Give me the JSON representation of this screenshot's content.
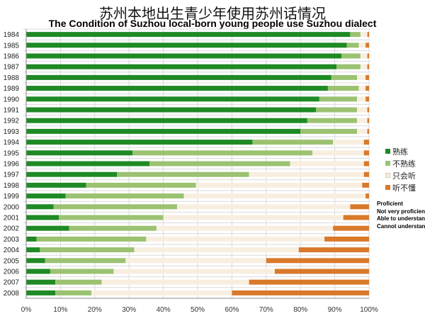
{
  "title_cn": "苏州本地出生青少年使用苏州话情况",
  "title_en": "The Condition of Suzhou local-born young people use Suzhou dialect",
  "legend_cn": [
    "熟练",
    "不熟练",
    "只会听",
    "听不懂"
  ],
  "legend_en": [
    "Proficient",
    "Not very proficient",
    "Able to understand",
    "Cannot understand"
  ],
  "colors": {
    "proficient": "#1f8a25",
    "not_very_proficient": "#9bc271",
    "able_to_understand": "#f8eee0",
    "cannot_understand": "#d9792a",
    "grid": "#d9d9d9",
    "axis": "#888888"
  },
  "chart_data": {
    "type": "bar",
    "orientation": "horizontal",
    "stacked": true,
    "title": "苏州本地出生青少年使用苏州话情况",
    "subtitle": "The Condition of Suzhou local-born young people use Suzhou dialect",
    "xlabel": "",
    "ylabel": "",
    "xlim": [
      0,
      100
    ],
    "xticks": [
      "0%",
      "10%",
      "20%",
      "30%",
      "40%",
      "50%",
      "60%",
      "70%",
      "80%",
      "90%",
      "100%"
    ],
    "grid": true,
    "legend_position": "right",
    "categories": [
      "1984",
      "1985",
      "1986",
      "1987",
      "1988",
      "1989",
      "1990",
      "1991",
      "1992",
      "1993",
      "1994",
      "1995",
      "1996",
      "1997",
      "1998",
      "1999",
      "2000",
      "2001",
      "2002",
      "2003",
      "2004",
      "2005",
      "2006",
      "2007",
      "2008"
    ],
    "series": [
      {
        "name": "熟练",
        "values": [
          94.5,
          93.5,
          92,
          90.5,
          89,
          88,
          85.5,
          84.5,
          82,
          80,
          66,
          31,
          36,
          26.5,
          17.5,
          11.5,
          8,
          9.5,
          12.5,
          3,
          4,
          5.5,
          7,
          8.5,
          8.5
        ]
      },
      {
        "name": "不熟练",
        "values": [
          3,
          3.5,
          5.5,
          7,
          7.5,
          9,
          11,
          12,
          14.5,
          16.5,
          23.5,
          52.5,
          41,
          38.5,
          32,
          34.5,
          36,
          30.5,
          25.5,
          32,
          27.5,
          23.5,
          18.5,
          13.5,
          10.5
        ]
      },
      {
        "name": "只会听",
        "values": [
          2,
          2,
          2,
          2,
          2.5,
          2,
          2.5,
          3,
          3,
          3,
          9,
          15,
          21.5,
          33.5,
          48.5,
          53,
          50.5,
          52.5,
          51.5,
          52,
          48,
          41,
          47,
          43,
          41
        ]
      },
      {
        "name": "听不懂",
        "values": [
          0.5,
          1,
          0.5,
          0.5,
          1,
          1,
          1,
          0.5,
          0.5,
          0.5,
          1.5,
          1.5,
          1.5,
          1.5,
          2,
          1,
          5.5,
          7.5,
          10.5,
          13,
          20.5,
          30,
          27.5,
          35,
          40
        ]
      }
    ]
  }
}
